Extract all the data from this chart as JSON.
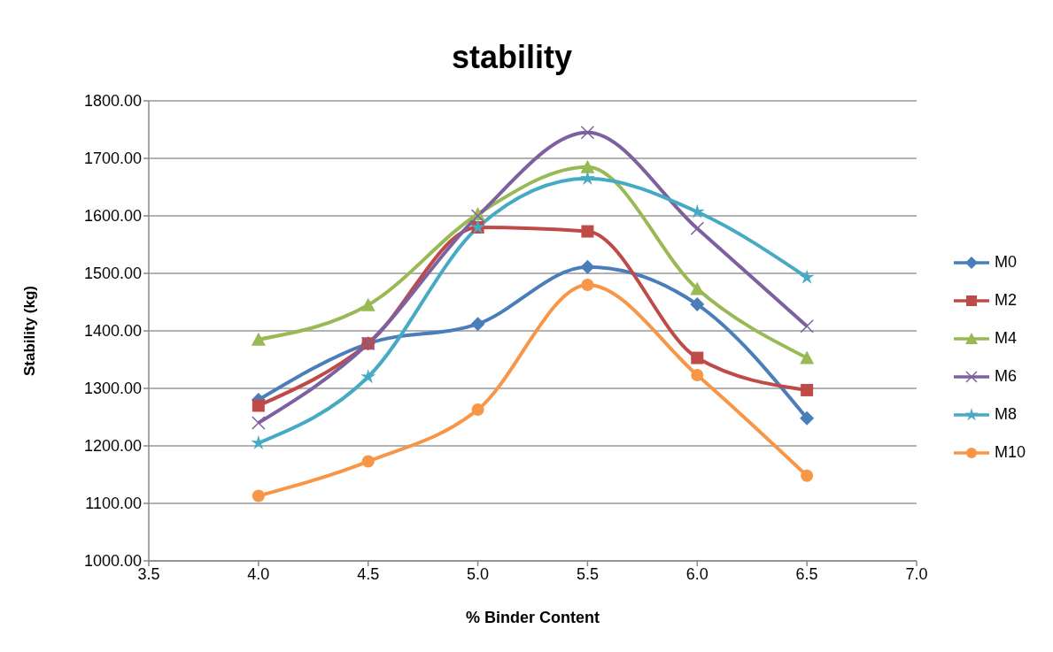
{
  "chart_data": {
    "type": "line",
    "title": "stability",
    "xlabel": "% Binder Content",
    "ylabel": "Stability (kg)",
    "x": [
      4.0,
      4.5,
      5.0,
      5.5,
      6.0,
      6.5
    ],
    "series": [
      {
        "name": "M0",
        "color": "#4a7ebb",
        "marker": "diamond",
        "values": [
          1280,
          1378,
          1412,
          1511,
          1446,
          1248
        ]
      },
      {
        "name": "M2",
        "color": "#be4b48",
        "marker": "square",
        "values": [
          1270,
          1378,
          1580,
          1573,
          1353,
          1297
        ]
      },
      {
        "name": "M4",
        "color": "#98b954",
        "marker": "triangle",
        "values": [
          1385,
          1445,
          1603,
          1685,
          1473,
          1353
        ]
      },
      {
        "name": "M6",
        "color": "#7d60a0",
        "marker": "cross",
        "values": [
          1240,
          1378,
          1600,
          1745,
          1578,
          1408
        ]
      },
      {
        "name": "M8",
        "color": "#46aac5",
        "marker": "star",
        "values": [
          1205,
          1320,
          1580,
          1665,
          1607,
          1493
        ]
      },
      {
        "name": "M10",
        "color": "#f79646",
        "marker": "circle",
        "values": [
          1113,
          1173,
          1263,
          1480,
          1323,
          1148
        ]
      }
    ],
    "xlim": [
      3.5,
      7.0
    ],
    "xticks": [
      {
        "value": 3.5,
        "label": "3.5"
      },
      {
        "value": 4.0,
        "label": "4.0"
      },
      {
        "value": 4.5,
        "label": "4.5"
      },
      {
        "value": 5.0,
        "label": "5.0"
      },
      {
        "value": 5.5,
        "label": "5.5"
      },
      {
        "value": 6.0,
        "label": "6.0"
      },
      {
        "value": 6.5,
        "label": "6.5"
      },
      {
        "value": 7.0,
        "label": "7.0"
      }
    ],
    "ylim": [
      1000,
      1800
    ],
    "yticks": [
      {
        "value": 1000,
        "label": "1000.00"
      },
      {
        "value": 1100,
        "label": "1100.00"
      },
      {
        "value": 1200,
        "label": "1200.00"
      },
      {
        "value": 1300,
        "label": "1300.00"
      },
      {
        "value": 1400,
        "label": "1400.00"
      },
      {
        "value": 1500,
        "label": "1500.00"
      },
      {
        "value": 1600,
        "label": "1600.00"
      },
      {
        "value": 1700,
        "label": "1700.00"
      },
      {
        "value": 1800,
        "label": "1800.00"
      }
    ],
    "grid": "y",
    "legend": "right",
    "line_style": "solid"
  }
}
